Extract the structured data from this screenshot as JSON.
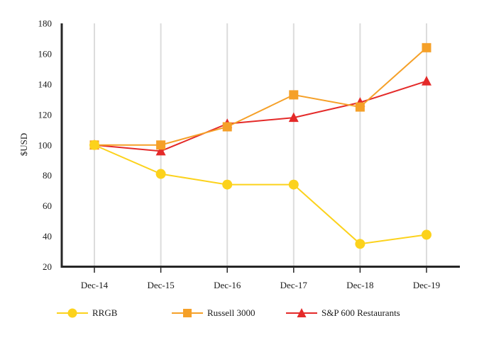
{
  "chart_data": {
    "type": "line",
    "title": "",
    "ylabel": "$USD",
    "xlabel": "",
    "categories": [
      "Dec-14",
      "Dec-15",
      "Dec-16",
      "Dec-17",
      "Dec-18",
      "Dec-19"
    ],
    "ylim": [
      20,
      180
    ],
    "ytick_step": 20,
    "grid": "vertical-only",
    "legend_position": "bottom",
    "series": [
      {
        "name": "RRGB",
        "marker": "circle",
        "color": "#FCD21C",
        "values": [
          100,
          81,
          74,
          74,
          35,
          41
        ]
      },
      {
        "name": "Russell 3000",
        "marker": "square",
        "color": "#F5A028",
        "values": [
          100,
          100,
          112,
          133,
          125,
          164
        ]
      },
      {
        "name": "S&P 600 Restaurants",
        "marker": "triangle",
        "color": "#E42A29",
        "values": [
          100,
          96,
          114,
          118,
          128,
          142
        ]
      }
    ]
  },
  "colors": {
    "axis": "#262626",
    "gridline": "#DCDCDC",
    "text": "#1A1A1A",
    "background": "#FFFFFF"
  }
}
